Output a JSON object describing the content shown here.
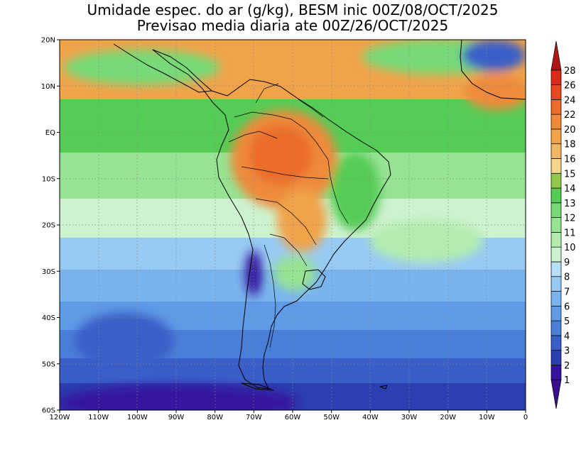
{
  "chart_data": {
    "type": "heatmap",
    "title": "Umidade espec. do ar (g/kg), BESM inic 00Z/08/OCT/2025",
    "subtitle": "Previsao media diaria ate 00Z/26/OCT/2025",
    "xlabel": "",
    "ylabel": "",
    "xlim": [
      -120,
      0
    ],
    "ylim": [
      -60,
      20
    ],
    "grid": true,
    "x_ticks": [
      {
        "value": -120,
        "label": "120W"
      },
      {
        "value": -110,
        "label": "110W"
      },
      {
        "value": -100,
        "label": "100W"
      },
      {
        "value": -90,
        "label": "90W"
      },
      {
        "value": -80,
        "label": "80W"
      },
      {
        "value": -70,
        "label": "70W"
      },
      {
        "value": -60,
        "label": "60W"
      },
      {
        "value": -50,
        "label": "50W"
      },
      {
        "value": -40,
        "label": "40W"
      },
      {
        "value": -30,
        "label": "30W"
      },
      {
        "value": -20,
        "label": "20W"
      },
      {
        "value": -10,
        "label": "10W"
      },
      {
        "value": 0,
        "label": "0"
      }
    ],
    "y_ticks": [
      {
        "value": 20,
        "label": "20N"
      },
      {
        "value": 10,
        "label": "10N"
      },
      {
        "value": 0,
        "label": "EQ"
      },
      {
        "value": -10,
        "label": "10S"
      },
      {
        "value": -20,
        "label": "20S"
      },
      {
        "value": -30,
        "label": "30S"
      },
      {
        "value": -40,
        "label": "40S"
      },
      {
        "value": -50,
        "label": "50S"
      },
      {
        "value": -60,
        "label": "60S"
      }
    ],
    "colorbar": {
      "levels": [
        "1",
        "2",
        "3",
        "4",
        "5",
        "6",
        "7",
        "8",
        "9",
        "10",
        "11",
        "12",
        "13",
        "14",
        "15",
        "16",
        "18",
        "20",
        "22",
        "24",
        "26",
        "28"
      ],
      "colors": [
        "#3b0e8c",
        "#34149e",
        "#2c3fb0",
        "#3a5ec8",
        "#4a7fd8",
        "#5f9be6",
        "#7ab4ee",
        "#97caf3",
        "#b6def5",
        "#cdf2cf",
        "#b4ecb0",
        "#96e393",
        "#77d977",
        "#55cc55",
        "#93c84a",
        "#f6d48c",
        "#f2b765",
        "#f0a349",
        "#ee8a3a",
        "#ec6c2a",
        "#e8481e",
        "#d92b1c",
        "#b01414"
      ]
    }
  }
}
